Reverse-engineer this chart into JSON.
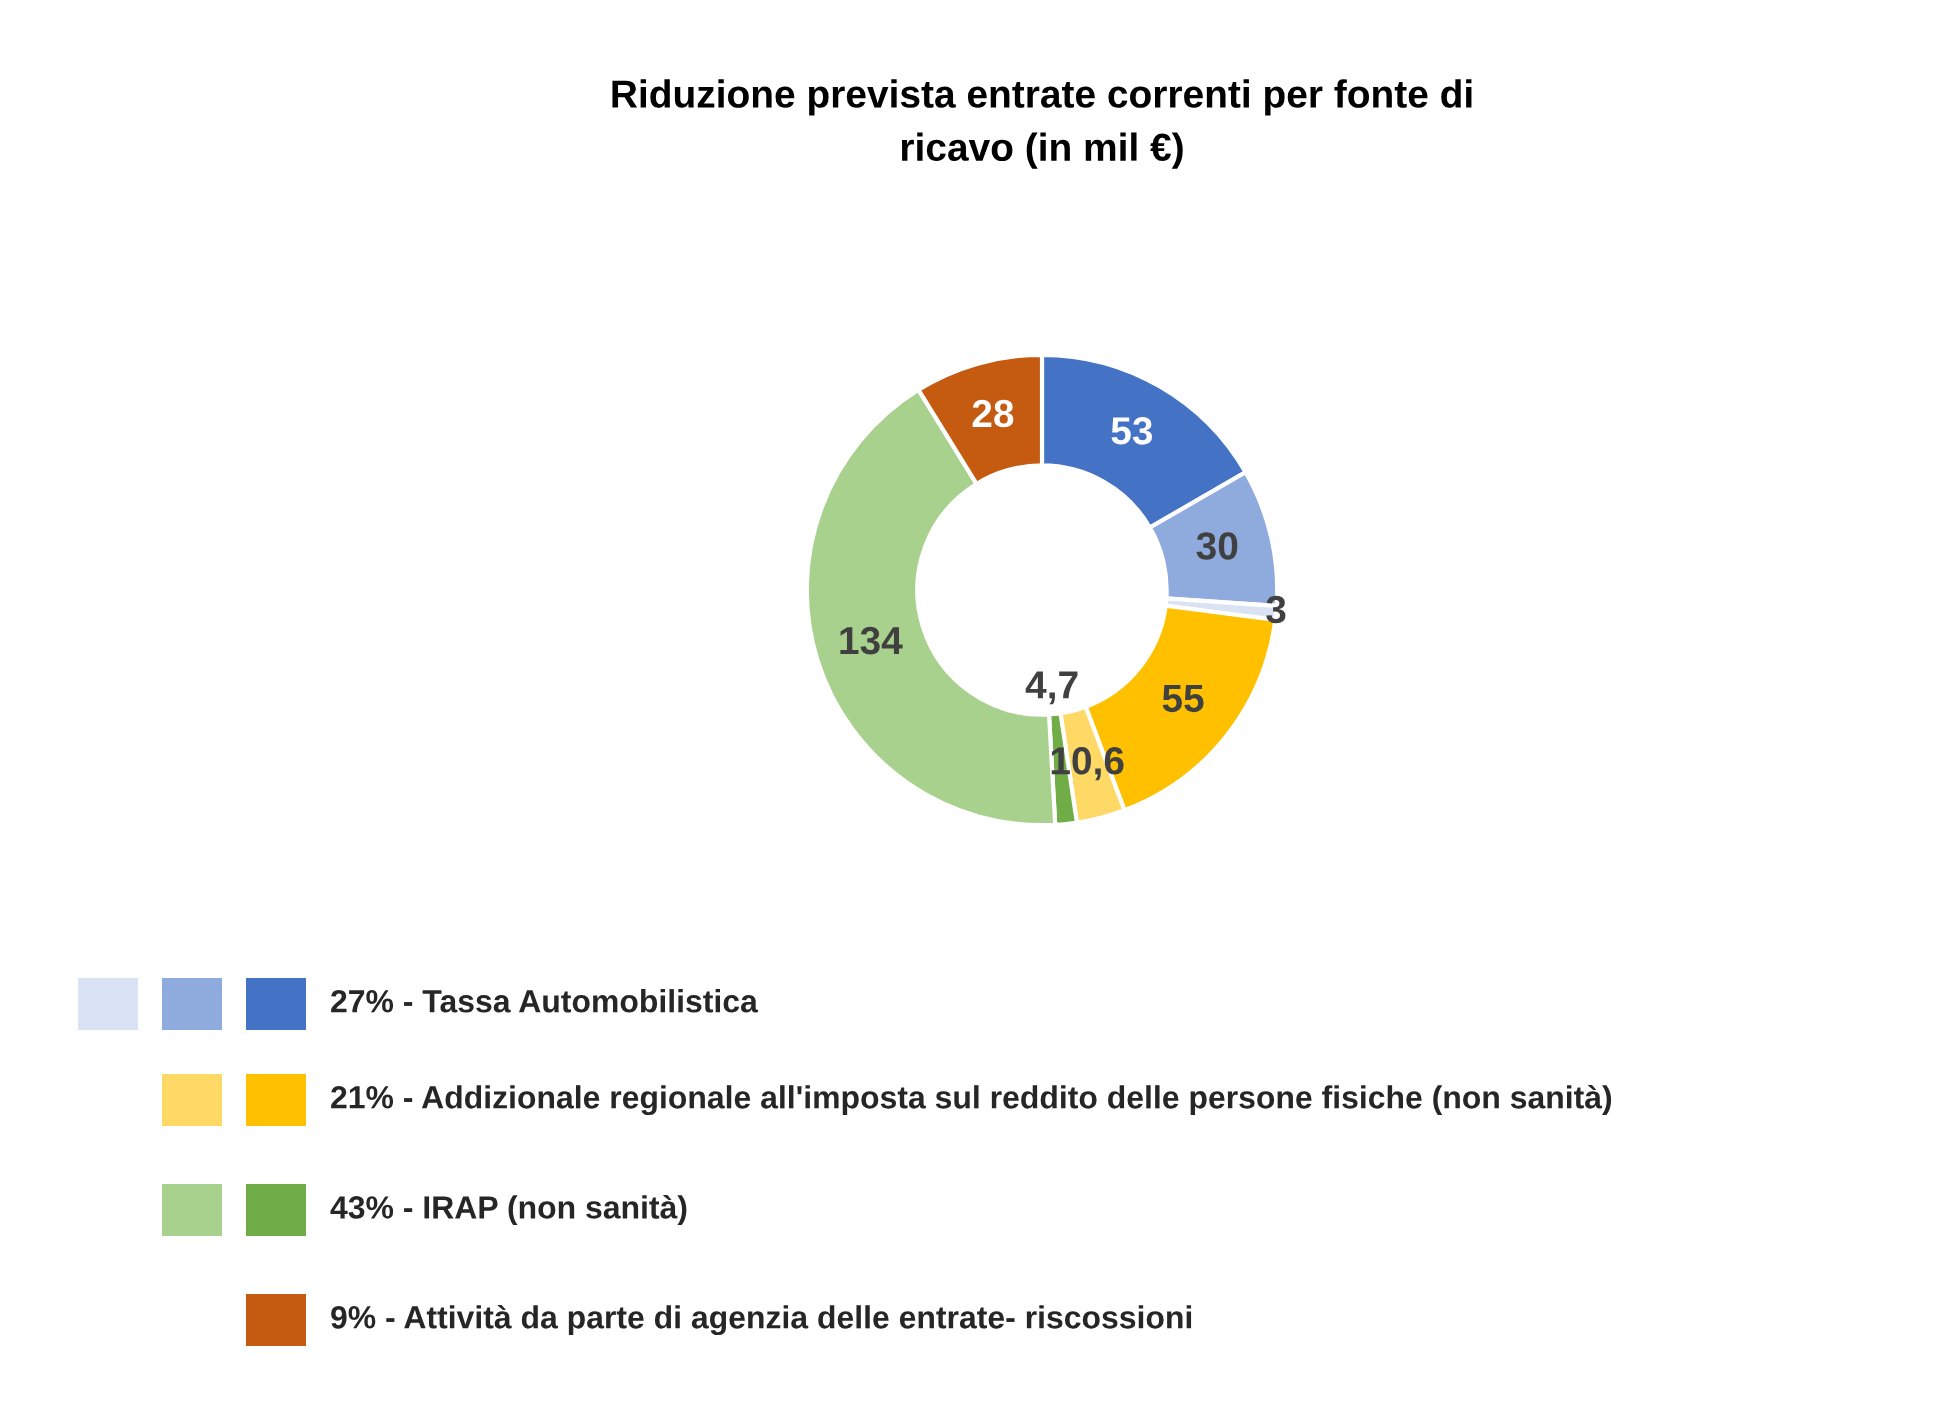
{
  "chart_data": {
    "type": "donut",
    "title": "Riduzione prevista entrate correnti per fonte di\nricavo (in mil €)",
    "categories": [
      "27% - Tassa Automobilistica",
      null,
      null,
      "21% - Addizionale regionale all'imposta sul reddito delle persone fisiche (non sanità)",
      null,
      "43% - IRAP (non sanità)",
      null,
      "9% - Attività da parte di agenzia delle entrate- riscossioni"
    ],
    "values": [
      53,
      30,
      3,
      55,
      10.6,
      4.7,
      134,
      28
    ],
    "colors": [
      "#4472c4",
      "#8faadc",
      "#dae3f3",
      "#ffc000",
      "#ffd966",
      "#70ad47",
      "#a9d18e",
      "#c55a11"
    ],
    "value_labels": [
      "53",
      "30",
      "3",
      "55",
      "10,6",
      "4,7",
      "134",
      "28"
    ],
    "legend": "bottom left"
  }
}
